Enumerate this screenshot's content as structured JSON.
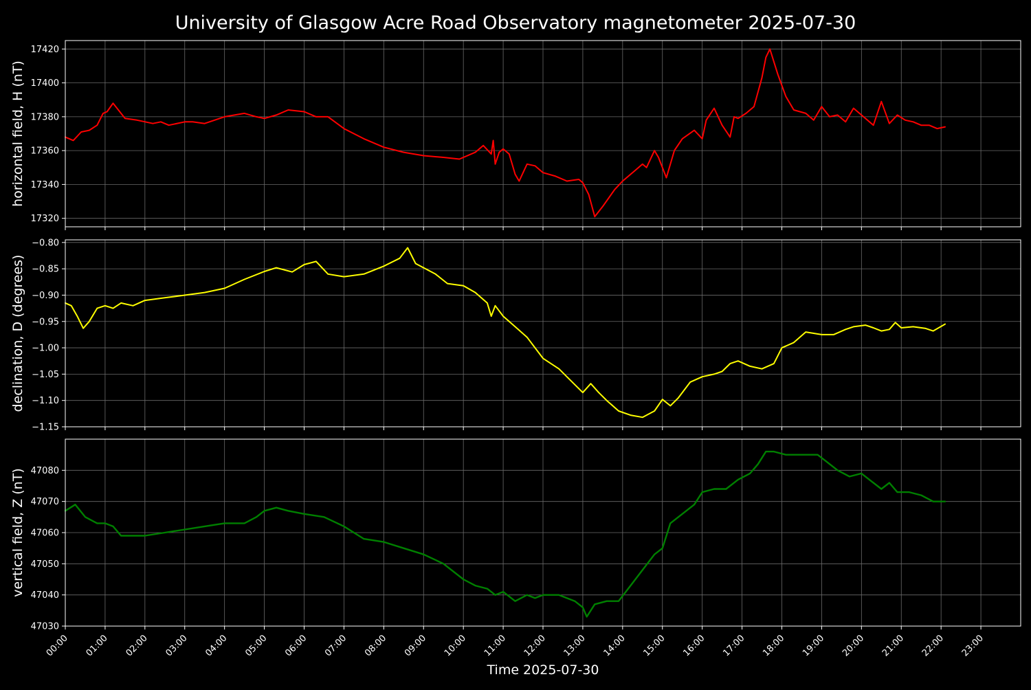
{
  "chart_data": {
    "type": "line",
    "title": "University of Glasgow Acre Road Observatory magnetometer 2025-07-30",
    "xlabel": "Time 2025-07-30",
    "xlim": [
      0,
      24
    ],
    "x_tick_labels": [
      "00:00",
      "01:00",
      "02:00",
      "03:00",
      "04:00",
      "05:00",
      "06:00",
      "07:00",
      "08:00",
      "09:00",
      "10:00",
      "11:00",
      "12:00",
      "13:00",
      "14:00",
      "15:00",
      "16:00",
      "17:00",
      "18:00",
      "19:00",
      "20:00",
      "21:00",
      "22:00",
      "23:00"
    ],
    "grid": true,
    "background": "#000000",
    "panels": [
      {
        "ylabel": "horizontal field, H (nT)",
        "ylim": [
          17315,
          17425
        ],
        "yticks": [
          17320,
          17340,
          17360,
          17380,
          17400,
          17420
        ],
        "y_tick_labels": [
          "17320",
          "17340",
          "17360",
          "17380",
          "17400",
          "17420"
        ],
        "series": [
          {
            "color": "#ff0000",
            "x": [
              0,
              0.2,
              0.4,
              0.6,
              0.8,
              0.95,
              1.05,
              1.2,
              1.5,
              1.8,
              2.2,
              2.4,
              2.6,
              3.0,
              3.2,
              3.5,
              4.0,
              4.5,
              4.8,
              5.0,
              5.3,
              5.6,
              6.0,
              6.3,
              6.6,
              7.0,
              7.5,
              8.0,
              8.5,
              9.0,
              9.5,
              9.9,
              10.3,
              10.5,
              10.7,
              10.75,
              10.8,
              10.9,
              11.0,
              11.15,
              11.3,
              11.4,
              11.6,
              11.8,
              12.0,
              12.3,
              12.6,
              12.9,
              13.0,
              13.15,
              13.3,
              13.5,
              13.8,
              14.0,
              14.1,
              14.3,
              14.5,
              14.6,
              14.8,
              14.9,
              15.1,
              15.3,
              15.5,
              15.8,
              16.0,
              16.1,
              16.3,
              16.5,
              16.7,
              16.8,
              16.9,
              17.1,
              17.3,
              17.5,
              17.6,
              17.7,
              17.9,
              18.1,
              18.3,
              18.6,
              18.8,
              19.0,
              19.2,
              19.4,
              19.6,
              19.8,
              20.1,
              20.3,
              20.5,
              20.7,
              20.9,
              21.1,
              21.3,
              21.5,
              21.7,
              21.9,
              22.1
            ],
            "y": [
              17368,
              17366,
              17371,
              17372,
              17375,
              17382,
              17383,
              17388,
              17379,
              17378,
              17376,
              17377,
              17375,
              17377,
              17377,
              17376,
              17380,
              17382,
              17380,
              17379,
              17381,
              17384,
              17383,
              17380,
              17380,
              17373,
              17367,
              17362,
              17359,
              17357,
              17356,
              17355,
              17359,
              17363,
              17358,
              17366,
              17352,
              17359,
              17361,
              17358,
              17346,
              17342,
              17352,
              17351,
              17347,
              17345,
              17342,
              17343,
              17341,
              17334,
              17321,
              17327,
              17337,
              17342,
              17344,
              17348,
              17352,
              17350,
              17360,
              17356,
              17344,
              17360,
              17367,
              17372,
              17367,
              17378,
              17385,
              17375,
              17368,
              17380,
              17379,
              17382,
              17386,
              17403,
              17415,
              17420,
              17405,
              17392,
              17384,
              17382,
              17378,
              17386,
              17380,
              17381,
              17377,
              17385,
              17379,
              17375,
              17389,
              17376,
              17381,
              17378,
              17377,
              17375,
              17375,
              17373,
              17374
            ]
          }
        ]
      },
      {
        "ylabel": "declination, D (degrees)",
        "ylim": [
          -1.15,
          -0.795
        ],
        "yticks": [
          -1.15,
          -1.1,
          -1.05,
          -1.0,
          -0.95,
          -0.9,
          -0.85,
          -0.8
        ],
        "y_tick_labels": [
          "−1.15",
          "−1.10",
          "−1.05",
          "−1.00",
          "−0.95",
          "−0.90",
          "−0.85",
          "−0.80"
        ],
        "series": [
          {
            "color": "#ffff00",
            "x": [
              0,
              0.15,
              0.3,
              0.45,
              0.6,
              0.8,
              1.0,
              1.2,
              1.4,
              1.7,
              2.0,
              2.5,
              3.0,
              3.5,
              4.0,
              4.5,
              5.0,
              5.3,
              5.7,
              6.0,
              6.3,
              6.6,
              7.0,
              7.5,
              8.0,
              8.4,
              8.6,
              8.8,
              9.0,
              9.3,
              9.6,
              10.0,
              10.3,
              10.6,
              10.7,
              10.8,
              11.0,
              11.3,
              11.6,
              12.0,
              12.4,
              12.8,
              13.0,
              13.2,
              13.4,
              13.6,
              13.9,
              14.2,
              14.5,
              14.8,
              15.0,
              15.2,
              15.4,
              15.7,
              16.0,
              16.3,
              16.5,
              16.7,
              16.9,
              17.2,
              17.5,
              17.8,
              18.0,
              18.3,
              18.6,
              19.0,
              19.3,
              19.6,
              19.8,
              20.1,
              20.3,
              20.5,
              20.7,
              20.85,
              21.0,
              21.3,
              21.6,
              21.8,
              22.1
            ],
            "y": [
              -0.915,
              -0.92,
              -0.94,
              -0.963,
              -0.95,
              -0.925,
              -0.92,
              -0.925,
              -0.915,
              -0.92,
              -0.91,
              -0.905,
              -0.9,
              -0.895,
              -0.887,
              -0.87,
              -0.855,
              -0.848,
              -0.856,
              -0.842,
              -0.836,
              -0.86,
              -0.865,
              -0.86,
              -0.845,
              -0.83,
              -0.81,
              -0.84,
              -0.848,
              -0.86,
              -0.878,
              -0.882,
              -0.895,
              -0.915,
              -0.94,
              -0.92,
              -0.94,
              -0.96,
              -0.98,
              -1.02,
              -1.04,
              -1.07,
              -1.085,
              -1.068,
              -1.085,
              -1.1,
              -1.12,
              -1.128,
              -1.132,
              -1.12,
              -1.098,
              -1.11,
              -1.095,
              -1.065,
              -1.055,
              -1.05,
              -1.045,
              -1.03,
              -1.025,
              -1.035,
              -1.04,
              -1.03,
              -1.0,
              -0.99,
              -0.97,
              -0.975,
              -0.975,
              -0.965,
              -0.96,
              -0.957,
              -0.962,
              -0.968,
              -0.965,
              -0.952,
              -0.962,
              -0.96,
              -0.963,
              -0.968,
              -0.955
            ]
          }
        ]
      },
      {
        "ylabel": "vertical field, Z (nT)",
        "ylim": [
          47030,
          47090
        ],
        "yticks": [
          47030,
          47040,
          47050,
          47060,
          47070,
          47080
        ],
        "y_tick_labels": [
          "47030",
          "47040",
          "47050",
          "47060",
          "47070",
          "47080"
        ],
        "series": [
          {
            "color": "#008000",
            "x": [
              0,
              0.25,
              0.5,
              0.8,
              1.0,
              1.2,
              1.4,
              1.7,
              2.0,
              2.5,
              3.0,
              3.5,
              4.0,
              4.5,
              4.8,
              5.0,
              5.3,
              5.6,
              6.0,
              6.5,
              7.0,
              7.5,
              8.0,
              8.5,
              9.0,
              9.5,
              10.0,
              10.3,
              10.6,
              10.8,
              11.0,
              11.3,
              11.6,
              11.8,
              12.0,
              12.4,
              12.8,
              13.0,
              13.1,
              13.3,
              13.6,
              13.9,
              14.2,
              14.5,
              14.8,
              15.0,
              15.2,
              15.5,
              15.8,
              16.0,
              16.3,
              16.6,
              16.9,
              17.2,
              17.4,
              17.6,
              17.8,
              18.1,
              18.5,
              18.9,
              19.1,
              19.4,
              19.7,
              20.0,
              20.3,
              20.5,
              20.7,
              20.9,
              21.2,
              21.5,
              21.8,
              22.1
            ],
            "y": [
              47067,
              47069,
              47065,
              47063,
              47063,
              47062,
              47059,
              47059,
              47059,
              47060,
              47061,
              47062,
              47063,
              47063,
              47065,
              47067,
              47068,
              47067,
              47066,
              47065,
              47062,
              47058,
              47057,
              47055,
              47053,
              47050,
              47045,
              47043,
              47042,
              47040,
              47041,
              47038,
              47040,
              47039,
              47040,
              47040,
              47038,
              47036,
              47033,
              47037,
              47038,
              47038,
              47043,
              47048,
              47053,
              47055,
              47063,
              47066,
              47069,
              47073,
              47074,
              47074,
              47077,
              47079,
              47082,
              47086,
              47086,
              47085,
              47085,
              47085,
              47083,
              47080,
              47078,
              47079,
              47076,
              47074,
              47076,
              47073,
              47073,
              47072,
              47070,
              47070
            ]
          }
        ]
      }
    ]
  }
}
